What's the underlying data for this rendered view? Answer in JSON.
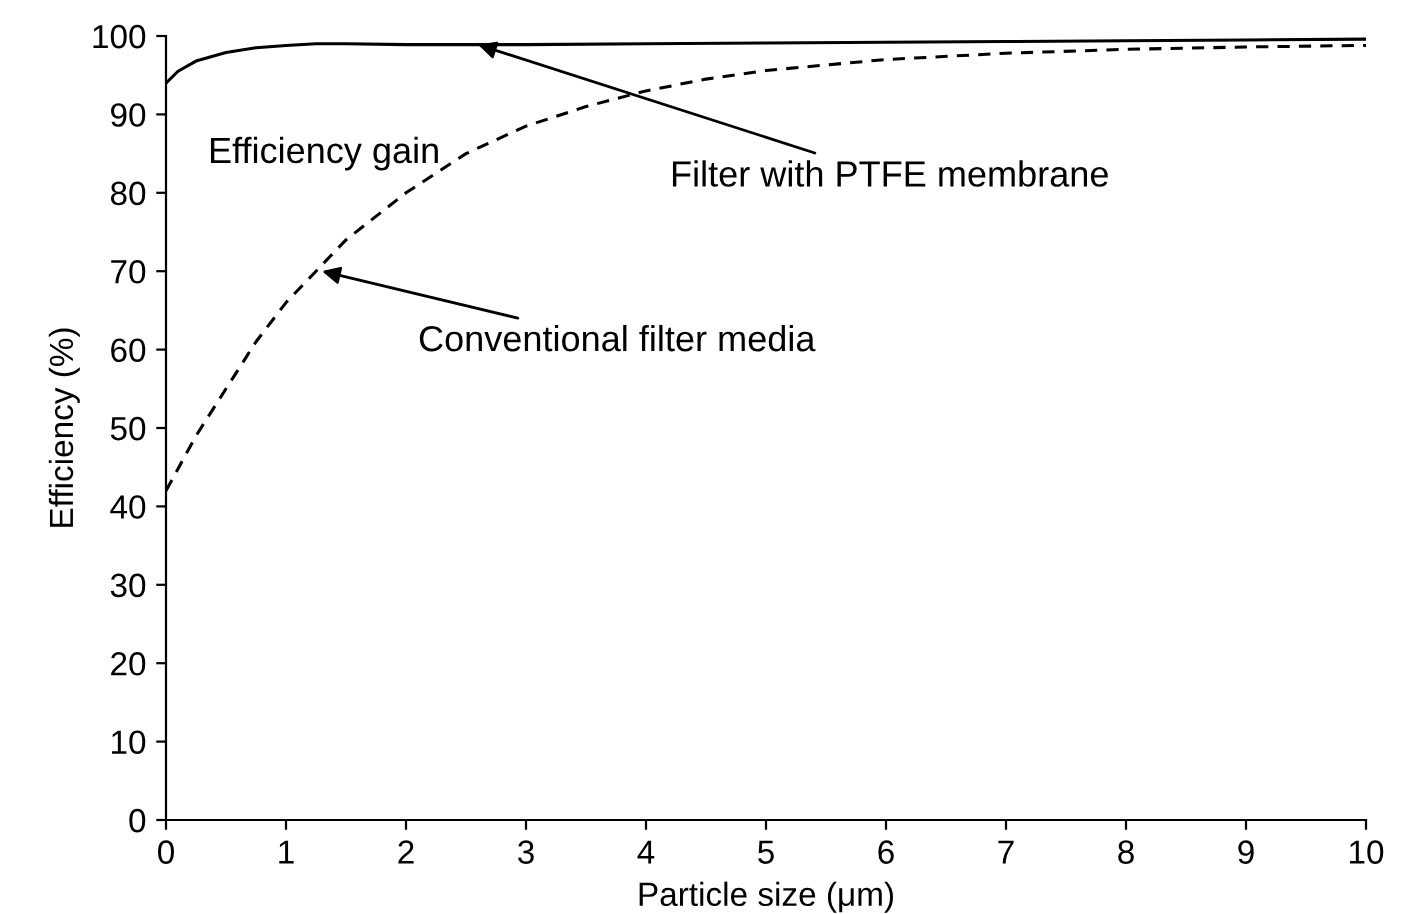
{
  "chart_data": {
    "type": "line",
    "xlabel": "Particle size (μm)",
    "ylabel": "Efficiency (%)",
    "xlim": [
      0,
      10
    ],
    "ylim": [
      0,
      100
    ],
    "xticks": [
      0,
      1,
      2,
      3,
      4,
      5,
      6,
      7,
      8,
      9,
      10
    ],
    "yticks": [
      0,
      10,
      20,
      30,
      40,
      50,
      60,
      70,
      80,
      90,
      100
    ],
    "grid": false,
    "legend": false,
    "marker": "none",
    "series": [
      {
        "color": "#000000",
        "line_style": "solid",
        "x": [
          0,
          0.1,
          0.25,
          0.5,
          0.75,
          1,
          1.25,
          1.5,
          2,
          2.5,
          3,
          4,
          5,
          6,
          7,
          8,
          9,
          10
        ],
        "values": [
          94,
          95.5,
          96.8,
          97.9,
          98.5,
          98.8,
          99,
          99,
          98.9,
          98.9,
          98.9,
          99,
          99.1,
          99.2,
          99.3,
          99.4,
          99.5,
          99.6
        ]
      },
      {
        "color": "#000000",
        "line_style": "dashed",
        "x": [
          0,
          0.25,
          0.5,
          0.75,
          1,
          1.25,
          1.5,
          2,
          2.5,
          3,
          3.5,
          4,
          4.5,
          5,
          6,
          7,
          8,
          9,
          10
        ],
        "values": [
          42,
          49,
          55,
          61,
          66,
          70,
          74,
          80,
          85,
          88.5,
          91,
          93,
          94.5,
          95.6,
          97,
          97.8,
          98.3,
          98.6,
          98.8
        ]
      }
    ],
    "annotations": [
      "Efficiency gain",
      {
        "text": "Filter with PTFE membrane",
        "x": 2.6,
        "y": 98.9
      },
      {
        "text": "Conventional filter media",
        "x": 1.3,
        "y": 70
      }
    ]
  }
}
